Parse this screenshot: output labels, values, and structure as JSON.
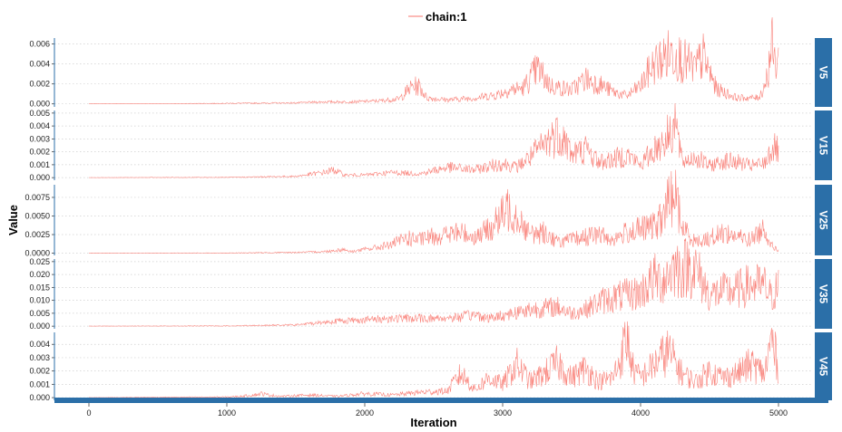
{
  "chart_data": {
    "type": "line",
    "legend": {
      "entries": [
        "chain:1"
      ],
      "placement": "top-center"
    },
    "xlabel": "Iteration",
    "ylabel": "Value",
    "x_ticks": [
      0,
      1000,
      2000,
      3000,
      4000,
      5000
    ],
    "x_tick_labels": [
      "0",
      "1000",
      "2000",
      "3000",
      "4000",
      "5000"
    ],
    "xlim": [
      -250,
      5250
    ],
    "grid": true,
    "series_color": "#F8766D",
    "strip_color": "#2b6fa8",
    "panels": [
      {
        "name": "V5",
        "ylim": [
          -0.0003,
          0.0066
        ],
        "y_ticks": [
          0,
          0.002,
          0.004,
          0.006
        ],
        "y_tick_labels": [
          "0.000",
          "0.002",
          "0.004",
          "0.006"
        ],
        "series": [
          {
            "name": "chain:1",
            "x": [
              0,
              500,
              1000,
              1500,
              1700,
              1900,
              2100,
              2250,
              2300,
              2350,
              2400,
              2450,
              2600,
              2800,
              2950,
              3050,
              3150,
              3250,
              3350,
              3500,
              3600,
              3700,
              3800,
              3900,
              4000,
              4050,
              4100,
              4200,
              4250,
              4300,
              4400,
              4450,
              4550,
              4700,
              4850,
              4880,
              4920,
              4950,
              4970,
              5000
            ],
            "y": [
              0,
              0,
              5e-05,
              0.0001,
              0.0002,
              0.0002,
              0.0003,
              0.0005,
              0.0012,
              0.0018,
              0.0017,
              0.0006,
              0.0004,
              0.0006,
              0.0009,
              0.0014,
              0.0016,
              0.0035,
              0.0018,
              0.0014,
              0.0025,
              0.002,
              0.0012,
              0.0008,
              0.0018,
              0.003,
              0.004,
              0.0049,
              0.0052,
              0.0044,
              0.0035,
              0.0048,
              0.0015,
              0.0006,
              0.0006,
              0.0012,
              0.0028,
              0.006,
              0.0042,
              0.0044
            ]
          }
        ]
      },
      {
        "name": "V15",
        "ylim": [
          -0.0002,
          0.0052
        ],
        "y_ticks": [
          0,
          0.001,
          0.002,
          0.003,
          0.004,
          0.005
        ],
        "y_tick_labels": [
          "0.000",
          "0.001",
          "0.002",
          "0.003",
          "0.004",
          "0.005"
        ],
        "series": [
          {
            "name": "chain:1",
            "x": [
              0,
              1000,
              1500,
              1700,
              1780,
              1850,
              2000,
              2200,
              2400,
              2600,
              2800,
              2950,
              3000,
              3100,
              3200,
              3300,
              3350,
              3400,
              3450,
              3500,
              3600,
              3700,
              3800,
              3900,
              4000,
              4100,
              4200,
              4250,
              4300,
              4400,
              4500,
              4600,
              4700,
              4800,
              4900,
              4950,
              5000
            ],
            "y": [
              0,
              2e-05,
              0.0001,
              0.0004,
              0.0006,
              0.0002,
              0.0002,
              0.0004,
              0.0003,
              0.0008,
              0.0006,
              0.001,
              0.0011,
              0.0008,
              0.0016,
              0.0025,
              0.0031,
              0.0034,
              0.003,
              0.0018,
              0.0022,
              0.0012,
              0.0014,
              0.0018,
              0.001,
              0.0022,
              0.0032,
              0.0045,
              0.0012,
              0.0016,
              0.0009,
              0.0013,
              0.0012,
              0.0009,
              0.0011,
              0.0023,
              0.0021
            ]
          }
        ]
      },
      {
        "name": "V25",
        "ylim": [
          -0.0003,
          0.0092
        ],
        "y_ticks": [
          0,
          0.0025,
          0.005,
          0.0075
        ],
        "y_tick_labels": [
          "0.0000",
          "0.0025",
          "0.0050",
          "0.0075"
        ],
        "series": [
          {
            "name": "chain:1",
            "x": [
              0,
              1000,
              1500,
              1700,
              1800,
              1850,
              1900,
              2100,
              2200,
              2300,
              2400,
              2500,
              2600,
              2700,
              2800,
              2900,
              3000,
              3050,
              3100,
              3200,
              3300,
              3400,
              3500,
              3600,
              3700,
              3800,
              3900,
              4000,
              4100,
              4150,
              4200,
              4250,
              4300,
              4400,
              4500,
              4600,
              4700,
              4800,
              4900,
              4950,
              5000
            ],
            "y": [
              0,
              2e-05,
              0.0001,
              0.0002,
              0.0004,
              0.0005,
              0.0002,
              0.0008,
              0.0012,
              0.002,
              0.0018,
              0.0023,
              0.0025,
              0.0028,
              0.0022,
              0.0032,
              0.005,
              0.0062,
              0.0052,
              0.0025,
              0.0028,
              0.0015,
              0.0018,
              0.0022,
              0.0025,
              0.0018,
              0.0028,
              0.0032,
              0.0036,
              0.0045,
              0.0068,
              0.0082,
              0.0035,
              0.0015,
              0.002,
              0.0028,
              0.0022,
              0.0018,
              0.0035,
              0.001,
              0.0004
            ]
          }
        ]
      },
      {
        "name": "V35",
        "ylim": [
          -0.001,
          0.026
        ],
        "y_ticks": [
          0,
          0.005,
          0.01,
          0.015,
          0.02,
          0.025
        ],
        "y_tick_labels": [
          "0.000",
          "0.005",
          "0.010",
          "0.015",
          "0.020",
          "0.025"
        ],
        "series": [
          {
            "name": "chain:1",
            "x": [
              0,
              1000,
              1500,
              1700,
              1800,
              2000,
              2200,
              2500,
              2700,
              2800,
              2900,
              3000,
              3200,
              3400,
              3500,
              3600,
              3700,
              3800,
              3900,
              4000,
              4050,
              4100,
              4150,
              4200,
              4250,
              4300,
              4350,
              4400,
              4450,
              4500,
              4600,
              4700,
              4800,
              4900,
              4950,
              5000
            ],
            "y": [
              0,
              0.0001,
              0.0005,
              0.0015,
              0.002,
              0.0025,
              0.003,
              0.003,
              0.0035,
              0.0045,
              0.003,
              0.0042,
              0.0065,
              0.0075,
              0.005,
              0.0065,
              0.0095,
              0.011,
              0.012,
              0.013,
              0.016,
              0.0185,
              0.0175,
              0.02,
              0.023,
              0.022,
              0.0235,
              0.0215,
              0.017,
              0.012,
              0.0135,
              0.014,
              0.016,
              0.0155,
              0.011,
              0.0155
            ]
          }
        ]
      },
      {
        "name": "V45",
        "ylim": [
          -0.0002,
          0.0049
        ],
        "y_ticks": [
          0,
          0.001,
          0.002,
          0.003,
          0.004
        ],
        "y_tick_labels": [
          "0.000",
          "0.001",
          "0.002",
          "0.003",
          "0.004"
        ],
        "series": [
          {
            "name": "chain:1",
            "x": [
              0,
              1000,
              1100,
              1200,
              1250,
              1300,
              1400,
              1600,
              1800,
              2000,
              2200,
              2400,
              2600,
              2650,
              2700,
              2800,
              2900,
              3000,
              3100,
              3200,
              3300,
              3400,
              3500,
              3600,
              3700,
              3800,
              3850,
              3900,
              3950,
              4000,
              4100,
              4200,
              4300,
              4400,
              4500,
              4600,
              4700,
              4800,
              4900,
              4950,
              5000
            ],
            "y": [
              0,
              5e-05,
              0.0001,
              0.0002,
              0.0003,
              0.0002,
              0.0001,
              0.0002,
              0.0001,
              0.0003,
              0.0002,
              0.0004,
              0.0005,
              0.0012,
              0.0018,
              0.0006,
              0.0015,
              0.001,
              0.0025,
              0.0012,
              0.0018,
              0.0026,
              0.0015,
              0.0022,
              0.0012,
              0.0015,
              0.0028,
              0.0045,
              0.002,
              0.0015,
              0.0025,
              0.0035,
              0.0018,
              0.0012,
              0.002,
              0.0015,
              0.0018,
              0.0025,
              0.0018,
              0.0044,
              0.0022
            ]
          }
        ]
      }
    ]
  }
}
